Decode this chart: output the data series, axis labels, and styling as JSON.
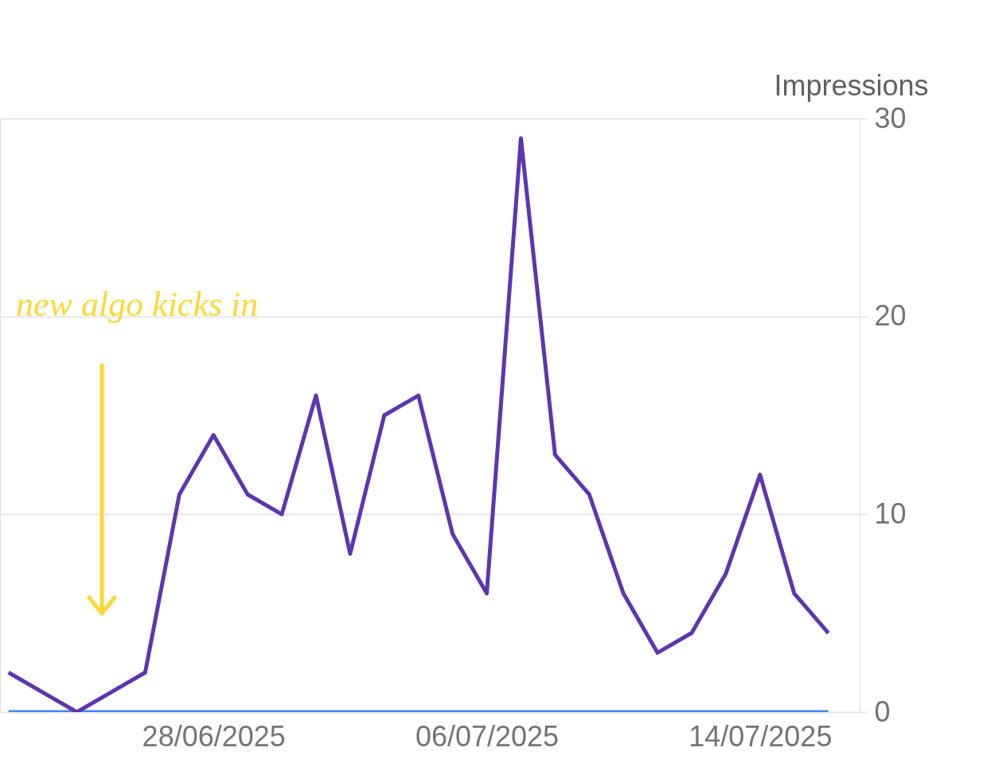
{
  "chart_data": {
    "type": "line",
    "ylabel": "Impressions",
    "x": [
      "2025-06-22",
      "2025-06-23",
      "2025-06-24",
      "2025-06-25",
      "2025-06-26",
      "2025-06-27",
      "2025-06-28",
      "2025-06-29",
      "2025-06-30",
      "2025-07-01",
      "2025-07-02",
      "2025-07-03",
      "2025-07-04",
      "2025-07-05",
      "2025-07-06",
      "2025-07-07",
      "2025-07-08",
      "2025-07-09",
      "2025-07-10",
      "2025-07-11",
      "2025-07-12",
      "2025-07-13",
      "2025-07-14",
      "2025-07-15",
      "2025-07-16"
    ],
    "series": [
      {
        "color": "#5e35b1",
        "values": [
          2,
          1,
          0,
          1,
          2,
          11,
          14,
          11,
          10,
          16,
          8,
          15,
          16,
          9,
          6,
          29,
          13,
          11,
          6,
          3,
          4,
          7,
          12,
          6,
          4
        ]
      },
      {
        "color": "#4285f4",
        "values": [
          0,
          0,
          0,
          0,
          0,
          0,
          0,
          0,
          0,
          0,
          0,
          0,
          0,
          0,
          0,
          0,
          0,
          0,
          0,
          0,
          0,
          0,
          0,
          0,
          0
        ]
      }
    ],
    "xlim": [
      "2025-06-21T18:00",
      "2025-07-16T22:00"
    ],
    "xticks": [
      {
        "value": "2025-06-28",
        "label": "28/06/2025"
      },
      {
        "value": "2025-07-06",
        "label": "06/07/2025"
      },
      {
        "value": "2025-07-14",
        "label": "14/07/2025"
      }
    ],
    "ylim": [
      0,
      30
    ],
    "yticks": [
      0,
      10,
      20,
      30
    ],
    "grid": "y",
    "marker": "none",
    "line_style": "solid",
    "annotations": [
      "new algo kicks in"
    ]
  }
}
